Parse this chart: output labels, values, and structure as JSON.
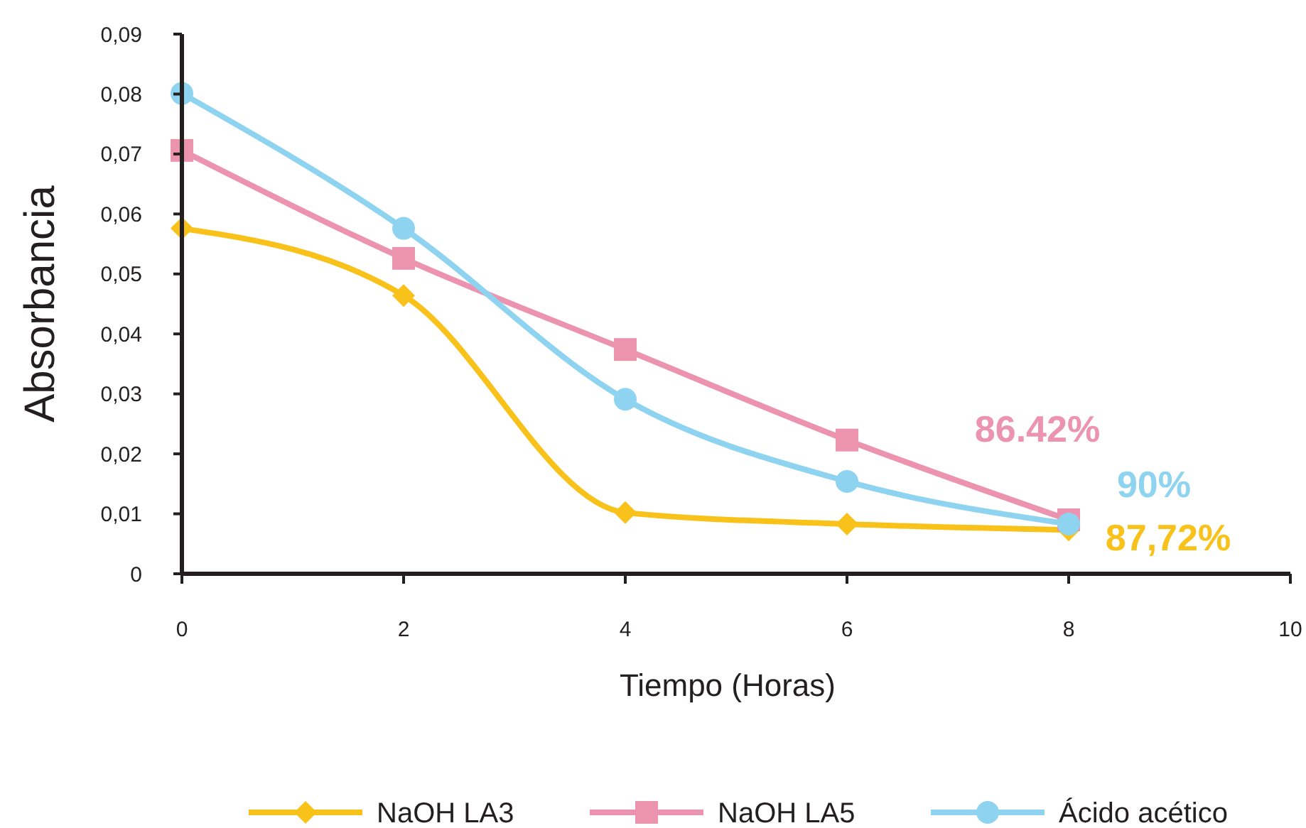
{
  "chart_data": {
    "type": "line",
    "xlabel": "Tiempo (Horas)",
    "ylabel": "Absorbancia",
    "x": [
      0,
      2,
      4,
      6,
      8
    ],
    "series": [
      {
        "name": "NaOH LA3",
        "color": "#f8c21a",
        "marker": "diamond",
        "values": [
          0.0576,
          0.0464,
          0.0102,
          0.0083,
          0.0073
        ]
      },
      {
        "name": "NaOH LA5",
        "color": "#ec93b0",
        "marker": "square",
        "values": [
          0.0706,
          0.0526,
          0.0374,
          0.0223,
          0.009
        ]
      },
      {
        "name": "Ácido acético",
        "color": "#8ed3f0",
        "marker": "circle",
        "values": [
          0.0801,
          0.0576,
          0.0291,
          0.0154,
          0.0083
        ]
      }
    ],
    "annotations": [
      "87,72%",
      "86.42%",
      "90%"
    ],
    "xlim": [
      0,
      10
    ],
    "xticks": [
      0,
      2,
      4,
      6,
      8,
      10
    ],
    "ylim": [
      0,
      0.09
    ],
    "yticks": [
      0,
      {
        "value": 0.01,
        "label": "0,01"
      },
      {
        "value": 0.02,
        "label": "0,02"
      },
      {
        "value": 0.03,
        "label": "0,03"
      },
      {
        "value": 0.04,
        "label": "0,04"
      },
      {
        "value": 0.05,
        "label": "0,05"
      },
      {
        "value": 0.06,
        "label": "0,06"
      },
      {
        "value": 0.07,
        "label": "0,07"
      },
      {
        "value": 0.08,
        "label": "0,08"
      },
      {
        "value": 0.09,
        "label": "0,09"
      }
    ],
    "legend": "bottom",
    "line_style": "solid",
    "grid": false
  }
}
